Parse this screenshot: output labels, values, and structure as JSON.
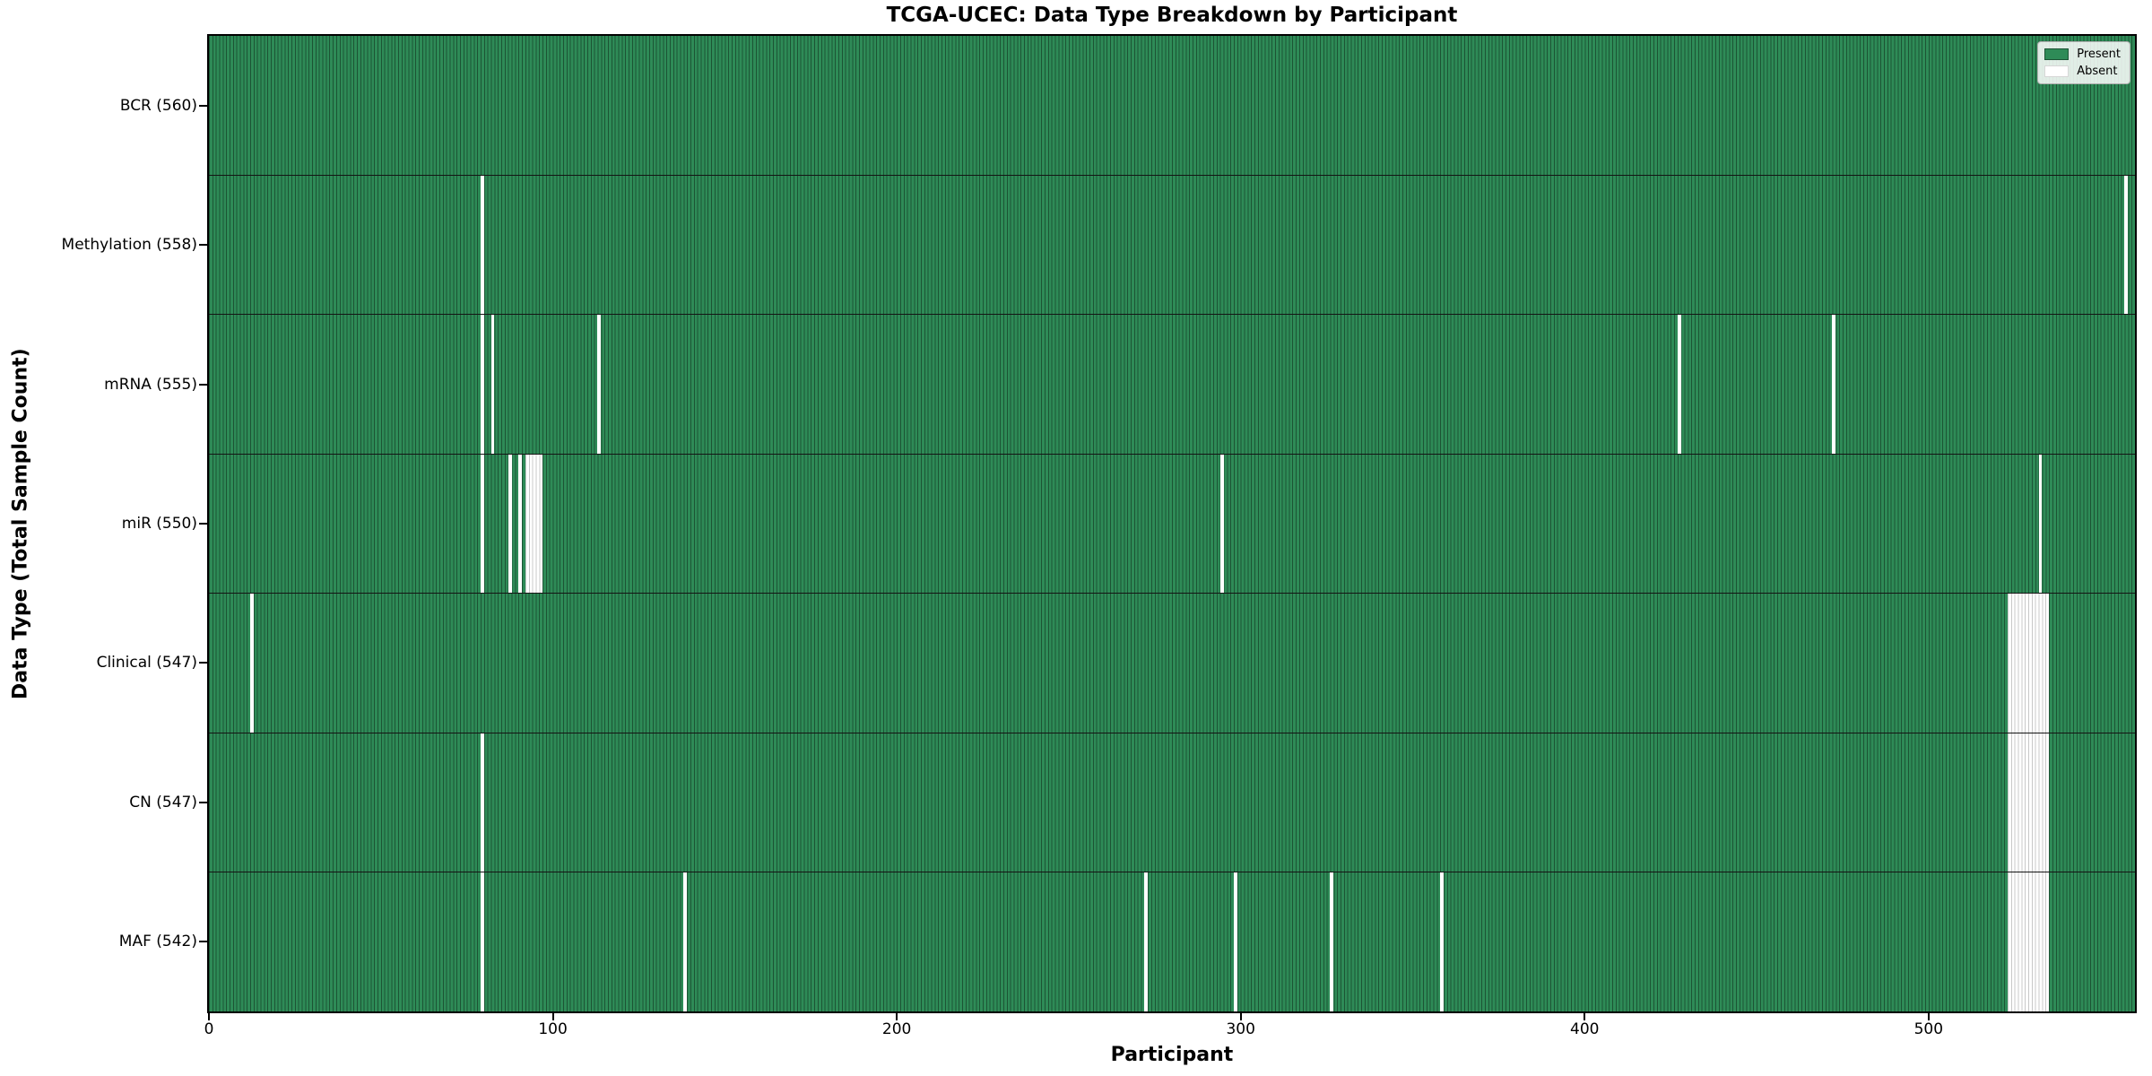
{
  "title": "TCGA-UCEC: Data Type Breakdown by Participant",
  "axes": {
    "xlabel": "Participant",
    "ylabel": "Data Type (Total Sample Count)",
    "x_tick_labels": [
      "0",
      "100",
      "200",
      "300",
      "400",
      "500"
    ]
  },
  "legend": {
    "items": [
      {
        "label": "Present",
        "color": "#2e8b57"
      },
      {
        "label": "Absent",
        "color": "#ffffff"
      }
    ]
  },
  "colors": {
    "present": "#2e8b57",
    "present_edge": "#1c5434",
    "absent": "#ffffff",
    "absent_edge": "#c8c8c8",
    "row_divider": "#141414",
    "plot_border": "#000000"
  },
  "chart_data": {
    "type": "heatmap",
    "title": "TCGA-UCEC: Data Type Breakdown by Participant",
    "xlabel": "Participant",
    "ylabel": "Data Type (Total Sample Count)",
    "x_range": [
      0,
      560
    ],
    "x_ticks": [
      0,
      100,
      200,
      300,
      400,
      500
    ],
    "n_participants": 560,
    "grid": false,
    "legend_entries": [
      "Present",
      "Absent"
    ],
    "legend_position": "upper right",
    "cell_states": {
      "present_color": "#2e8b57",
      "absent_color": "#ffffff"
    },
    "rows": [
      {
        "name": "BCR",
        "label": "BCR (560)",
        "total": 560,
        "absent_participants": []
      },
      {
        "name": "Methylation",
        "label": "Methylation (558)",
        "total": 558,
        "absent_participants": [
          79,
          557
        ]
      },
      {
        "name": "mRNA",
        "label": "mRNA (555)",
        "total": 555,
        "absent_participants": [
          79,
          82,
          113,
          427,
          472
        ]
      },
      {
        "name": "miR",
        "label": "miR (550)",
        "total": 550,
        "absent_participants": [
          79,
          87,
          90,
          92,
          93,
          94,
          95,
          96,
          294,
          532
        ]
      },
      {
        "name": "Clinical",
        "label": "Clinical (547)",
        "total": 547,
        "absent_participants": [
          12,
          523,
          524,
          525,
          526,
          527,
          528,
          529,
          530,
          531,
          532,
          533,
          534
        ]
      },
      {
        "name": "CN",
        "label": "CN (547)",
        "total": 547,
        "absent_participants": [
          79,
          523,
          524,
          525,
          526,
          527,
          528,
          529,
          530,
          531,
          532,
          533,
          534
        ]
      },
      {
        "name": "MAF",
        "label": "MAF (542)",
        "total": 542,
        "absent_participants": [
          79,
          138,
          272,
          298,
          326,
          358,
          523,
          524,
          525,
          526,
          527,
          528,
          529,
          530,
          531,
          532,
          533,
          534
        ]
      }
    ]
  }
}
